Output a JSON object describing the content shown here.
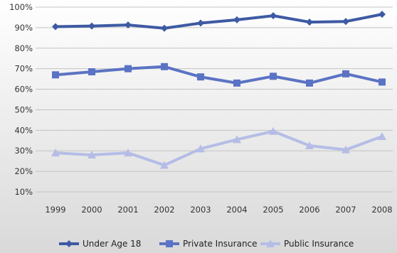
{
  "chart_data": {
    "type": "line",
    "title": "",
    "xlabel": "",
    "ylabel": "",
    "categories": [
      "1999",
      "2000",
      "2001",
      "2002",
      "2003",
      "2004",
      "2005",
      "2006",
      "2007",
      "2008"
    ],
    "y_ticks": [
      "10%",
      "20%",
      "30%",
      "40%",
      "50%",
      "60%",
      "70%",
      "80%",
      "90%",
      "100%"
    ],
    "ylim": [
      10,
      100
    ],
    "grid": true,
    "legend_position": "bottom",
    "series": [
      {
        "name": "Under Age 18",
        "values": [
          90.5,
          90.8,
          91.3,
          89.7,
          92.2,
          93.8,
          95.8,
          92.7,
          93.0,
          96.5
        ],
        "color": "#3d5aa3",
        "marker": "diamond"
      },
      {
        "name": "Private Insurance",
        "values": [
          67,
          68.5,
          70,
          71,
          66,
          63,
          66.3,
          63,
          67.5,
          63.5
        ],
        "color": "#5b73c4",
        "marker": "square"
      },
      {
        "name": "Public Insurance",
        "values": [
          29,
          28,
          29,
          23,
          31,
          35.5,
          39.5,
          32.5,
          30.5,
          37
        ],
        "color": "#b5bde6",
        "marker": "triangle"
      }
    ]
  }
}
